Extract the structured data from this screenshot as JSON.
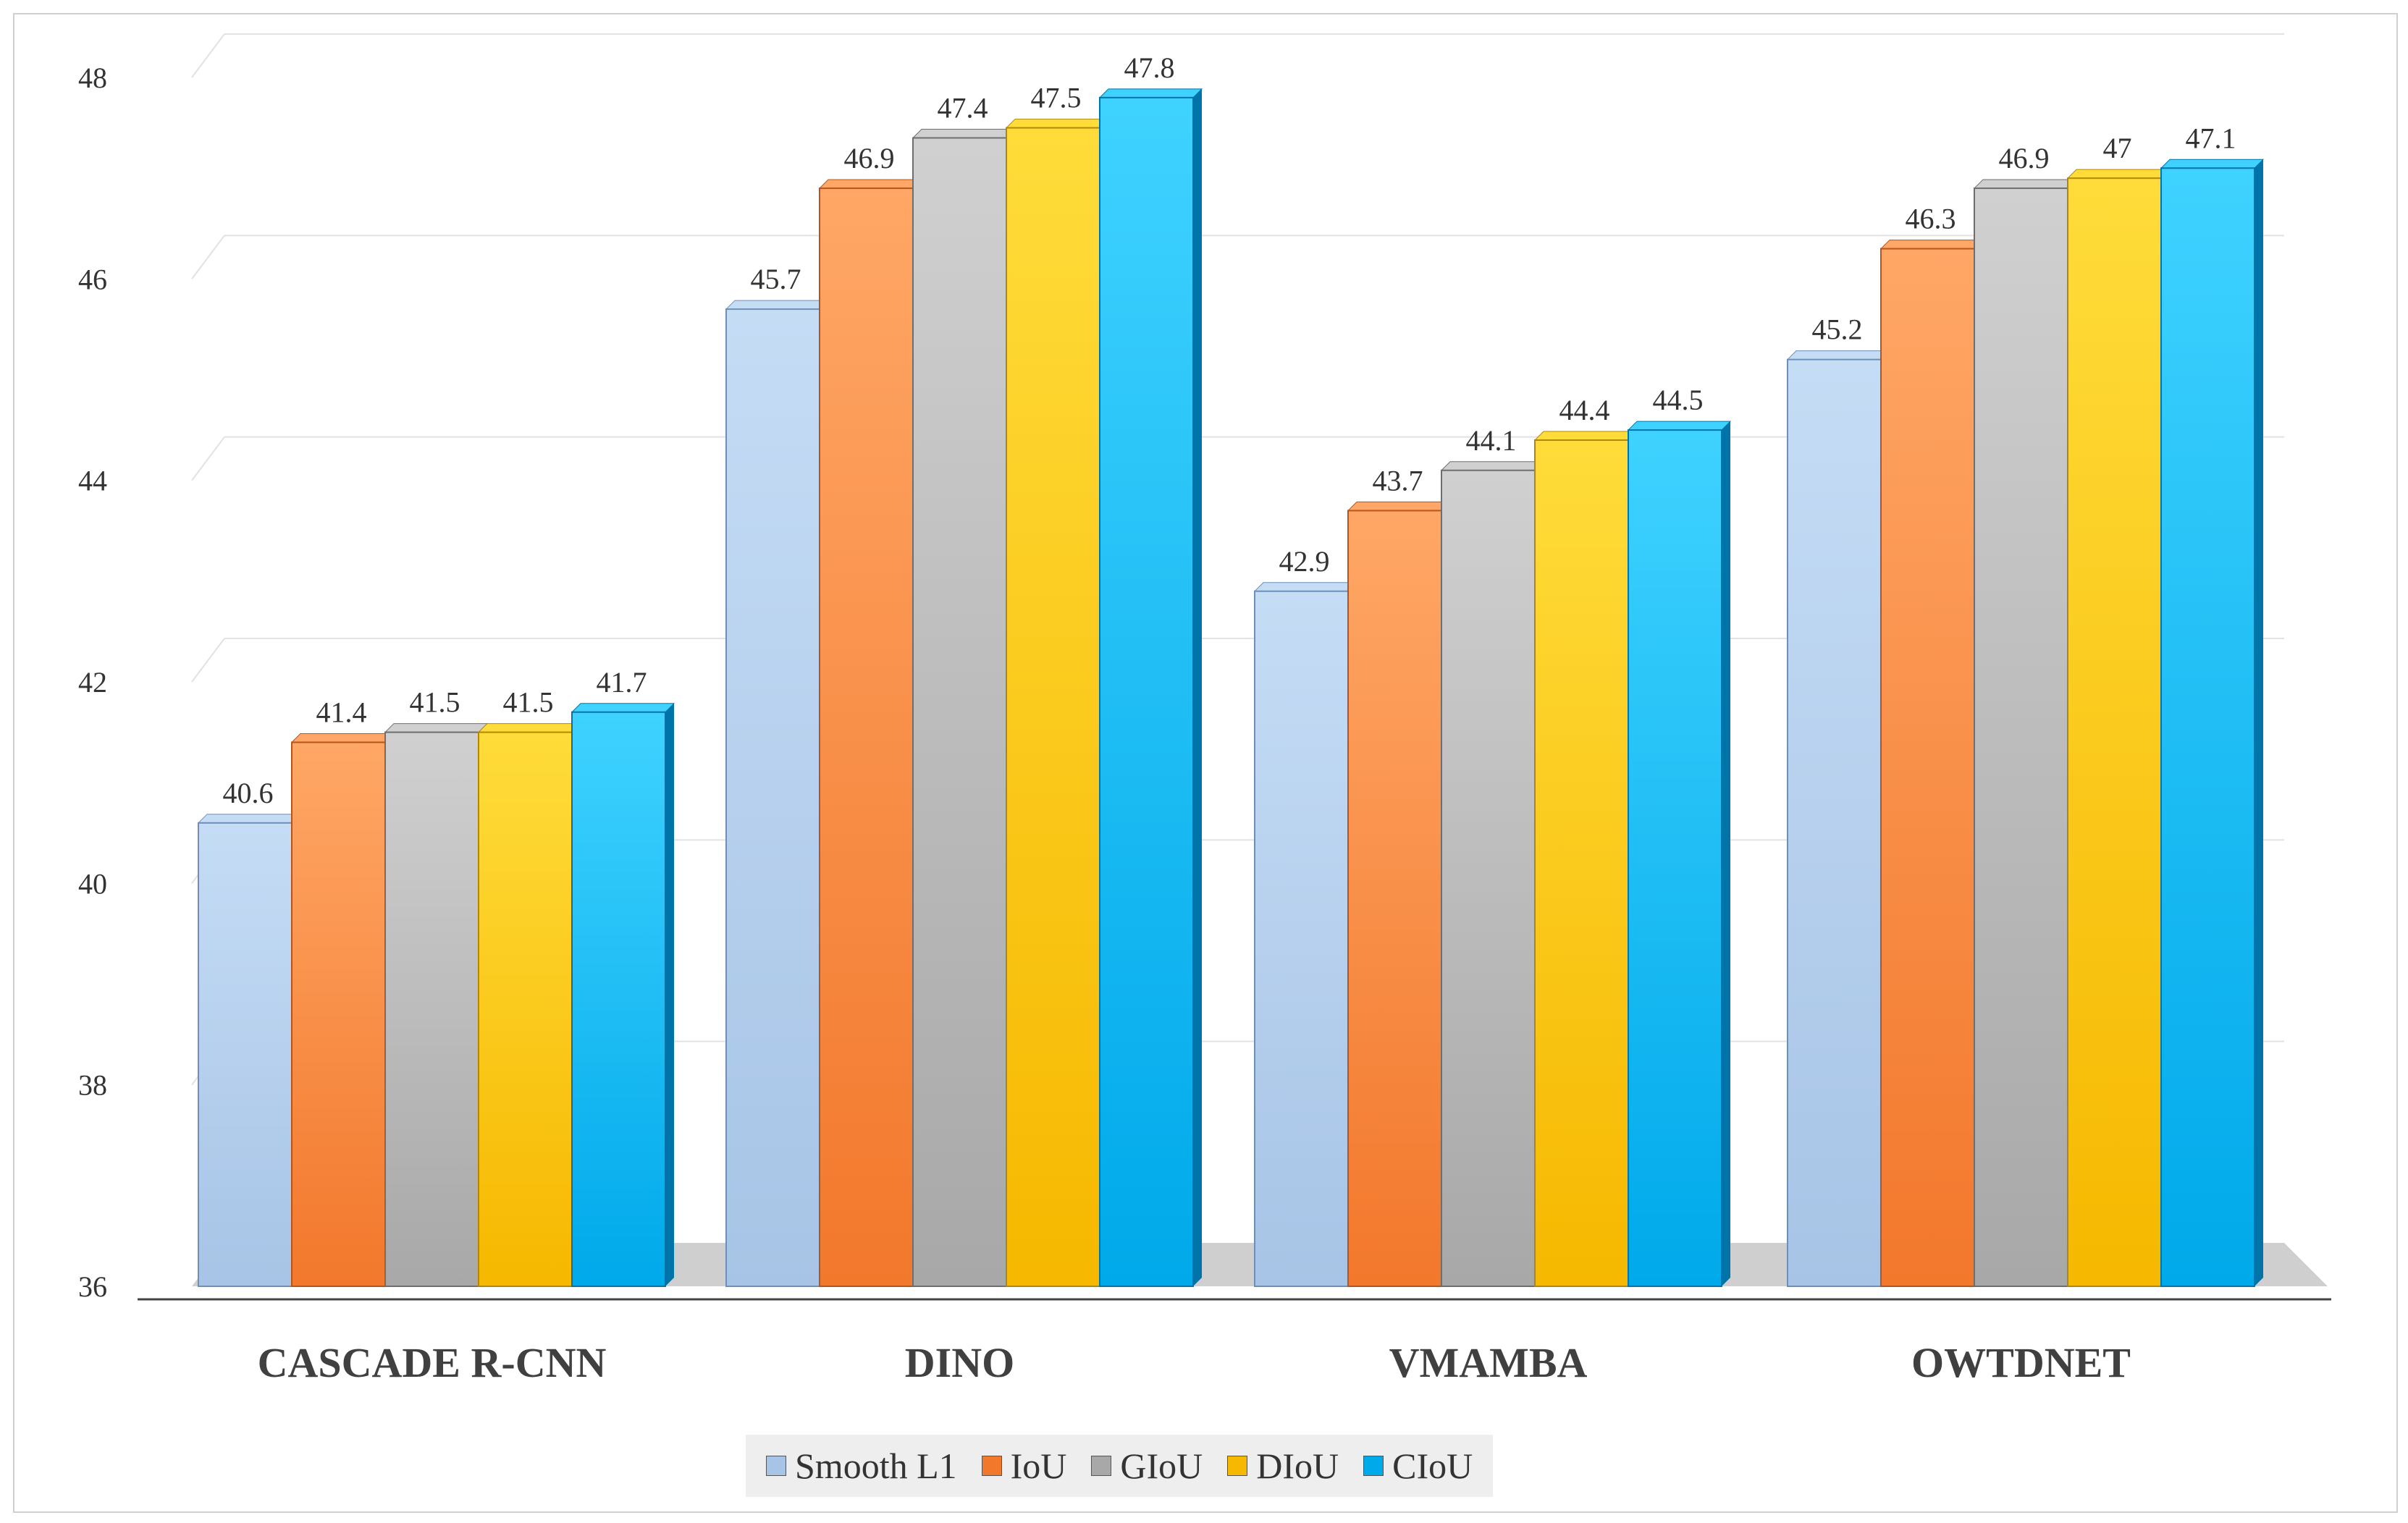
{
  "chart_data": {
    "type": "bar",
    "title": "",
    "xlabel": "",
    "ylabel": "",
    "ylim": [
      36,
      48
    ],
    "yticks": [
      36,
      38,
      40,
      42,
      44,
      46,
      48
    ],
    "grid": true,
    "legend_position": "bottom",
    "categories": [
      "CASCADE R-CNN",
      "DINO",
      "VMAMBA",
      "OWTDNET"
    ],
    "series": [
      {
        "name": "Smooth L1",
        "values": [
          40.6,
          45.7,
          42.9,
          45.2
        ],
        "labels": [
          "40.6",
          "45.7",
          "42.9",
          "45.2"
        ]
      },
      {
        "name": "IoU",
        "values": [
          41.4,
          46.9,
          43.7,
          46.3
        ],
        "labels": [
          "41.4",
          "46.9",
          "43.7",
          "46.3"
        ]
      },
      {
        "name": "GIoU",
        "values": [
          41.5,
          47.4,
          44.1,
          46.9
        ],
        "labels": [
          "41.5",
          "47.4",
          "44.1",
          "46.9"
        ]
      },
      {
        "name": "DIoU",
        "values": [
          41.5,
          47.5,
          44.4,
          47
        ],
        "labels": [
          "41.5",
          "47.5",
          "44.4",
          "47"
        ]
      },
      {
        "name": "CIoU",
        "values": [
          41.7,
          47.8,
          44.5,
          47.1
        ],
        "labels": [
          "41.7",
          "47.8",
          "44.5",
          "47.1"
        ]
      }
    ]
  },
  "colors": {
    "Smooth L1": [
      "#c5dcf5",
      "#a7c4e6",
      "#6f8fb8"
    ],
    "IoU": [
      "#ffa766",
      "#f2782c",
      "#b8531a"
    ],
    "GIoU": [
      "#d0d0d0",
      "#a8a8a8",
      "#6e6e6e"
    ],
    "DIoU": [
      "#ffdc3a",
      "#f6b800",
      "#b48700"
    ],
    "CIoU": [
      "#3fd2ff",
      "#00a9ea",
      "#0074a8"
    ]
  }
}
